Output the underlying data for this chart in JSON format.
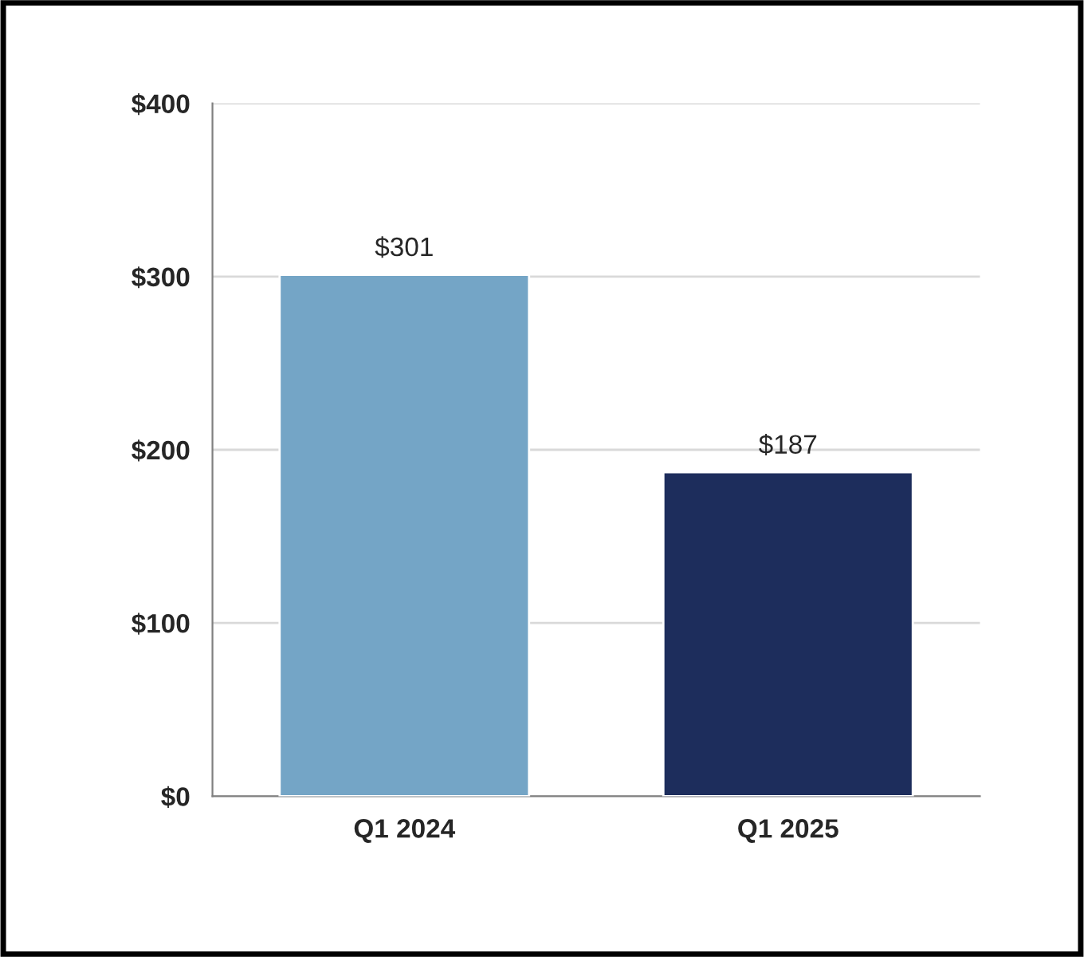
{
  "chart_data": {
    "type": "bar",
    "categories": [
      "Q1 2024",
      "Q1 2025"
    ],
    "values": [
      301,
      187
    ],
    "colors": [
      "#74a5c6",
      "#1d2d5c"
    ],
    "value_labels": [
      "$301",
      "$187"
    ],
    "ylim": [
      0,
      400
    ],
    "yticks": [
      {
        "value": 0,
        "label": "$0"
      },
      {
        "value": 100,
        "label": "$100"
      },
      {
        "value": 200,
        "label": "$200"
      },
      {
        "value": 300,
        "label": "$300"
      },
      {
        "value": 400,
        "label": "$400"
      }
    ],
    "grid": "y"
  }
}
